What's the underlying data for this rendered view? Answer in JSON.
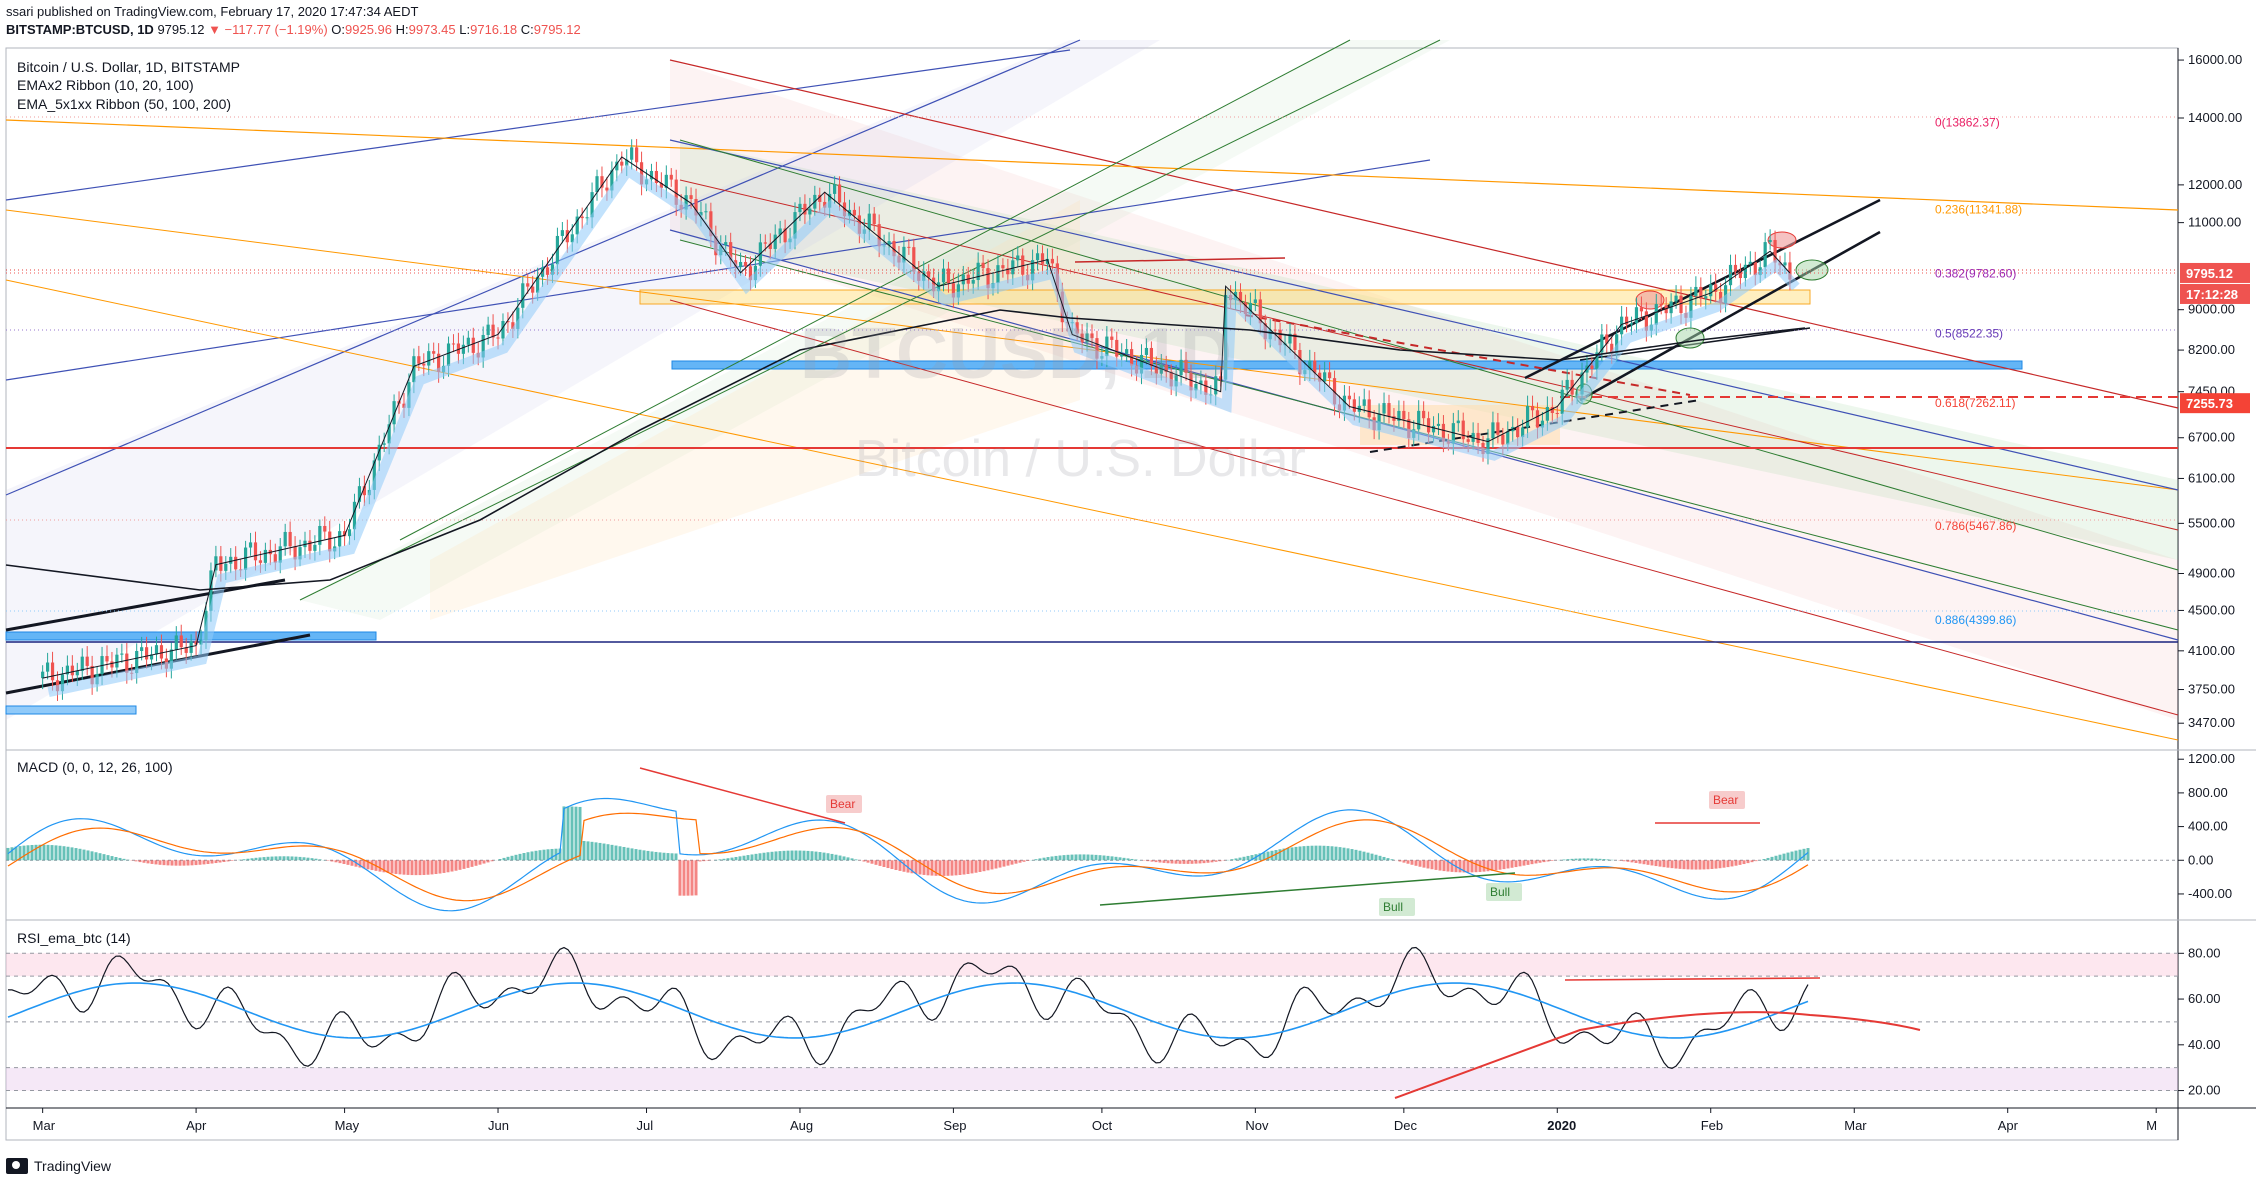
{
  "header": {
    "line1": "ssari published on TradingView.com, February 17, 2020 17:47:34 AEDT",
    "symbol": "BITSTAMP:BTCUSD, 1D",
    "last": "9795.12",
    "change": "▼ −117.77 (−1.19%)",
    "o_label": "O:",
    "o": "9925.96",
    "h_label": "H:",
    "h": "9973.45",
    "l_label": "L:",
    "l": "9716.18",
    "c_label": "C:",
    "c": "9795.12"
  },
  "main_pane": {
    "legend": [
      "Bitcoin / U.S. Dollar, 1D, BITSTAMP",
      "EMAx2 Ribbon (10, 20, 100)",
      "EMA_5x1xx Ribbon (50, 100, 200)"
    ],
    "watermark_symbol": "BTCUSD, 1D",
    "watermark_name": "Bitcoin / U.S. Dollar",
    "price_axis": [
      "16000.00",
      "14000.00",
      "12000.00",
      "11000.00",
      "9795.12",
      "9000.00",
      "8200.00",
      "7450.00",
      "7255.73",
      "6700.00",
      "6100.00",
      "5500.00",
      "4900.00",
      "4500.00",
      "4100.00",
      "3750.00",
      "3470.00"
    ],
    "last_price_tag": "9795.12",
    "countdown_tag": "17:12:28",
    "level_tag": "7255.73",
    "fib_levels": [
      {
        "label": "0(13862.37)",
        "color": "#e91e63"
      },
      {
        "label": "0.236(11341.88)",
        "color": "#ff9800"
      },
      {
        "label": "0.382(9782.60)",
        "color": "#9c27b0"
      },
      {
        "label": "0.5(8522.35)",
        "color": "#673ab7"
      },
      {
        "label": "0.618(7262.11)",
        "color": "#f44336"
      },
      {
        "label": "0.786(5467.86)",
        "color": "#f44336"
      },
      {
        "label": "0.886(4399.86)",
        "color": "#2196f3"
      }
    ]
  },
  "macd_pane": {
    "legend": "MACD (0, 0, 12, 26, 100)",
    "axis": [
      "1200.00",
      "800.00",
      "400.00",
      "0.00",
      "-400.00"
    ],
    "labels": {
      "bear1": "Bear",
      "bear2": "Bear",
      "bull1": "Bull",
      "bull2": "Bull"
    }
  },
  "rsi_pane": {
    "legend": "RSI_ema_btc (14)",
    "axis": [
      "80.00",
      "60.00",
      "40.00",
      "20.00"
    ]
  },
  "time_axis": [
    "Mar",
    "Apr",
    "May",
    "Jun",
    "Jul",
    "Aug",
    "Sep",
    "Oct",
    "Nov",
    "Dec",
    "2020",
    "Feb",
    "Mar",
    "Apr",
    "M"
  ],
  "footer": {
    "brand": "TradingView"
  },
  "chart_data": {
    "type": "line",
    "ylim": [
      3300,
      16300
    ],
    "x": [
      "2019-03-01",
      "2019-04-01",
      "2019-04-05",
      "2019-05-01",
      "2019-05-15",
      "2019-06-01",
      "2019-06-26",
      "2019-07-10",
      "2019-07-20",
      "2019-08-06",
      "2019-08-29",
      "2019-09-20",
      "2019-09-25",
      "2019-10-25",
      "2019-10-26",
      "2019-11-20",
      "2019-12-18",
      "2020-01-01",
      "2020-01-14",
      "2020-02-01",
      "2020-02-13",
      "2020-02-17"
    ],
    "series": [
      {
        "values": [
          3850,
          4150,
          5000,
          5350,
          7900,
          8500,
          12800,
          11500,
          9800,
          11800,
          9500,
          10100,
          8500,
          7450,
          9500,
          7200,
          6640,
          7200,
          8700,
          9350,
          10300,
          9795.12
        ]
      }
    ],
    "macd_ylim": [
      -650,
      1250
    ],
    "rsi_ylim": [
      15,
      88
    ]
  }
}
